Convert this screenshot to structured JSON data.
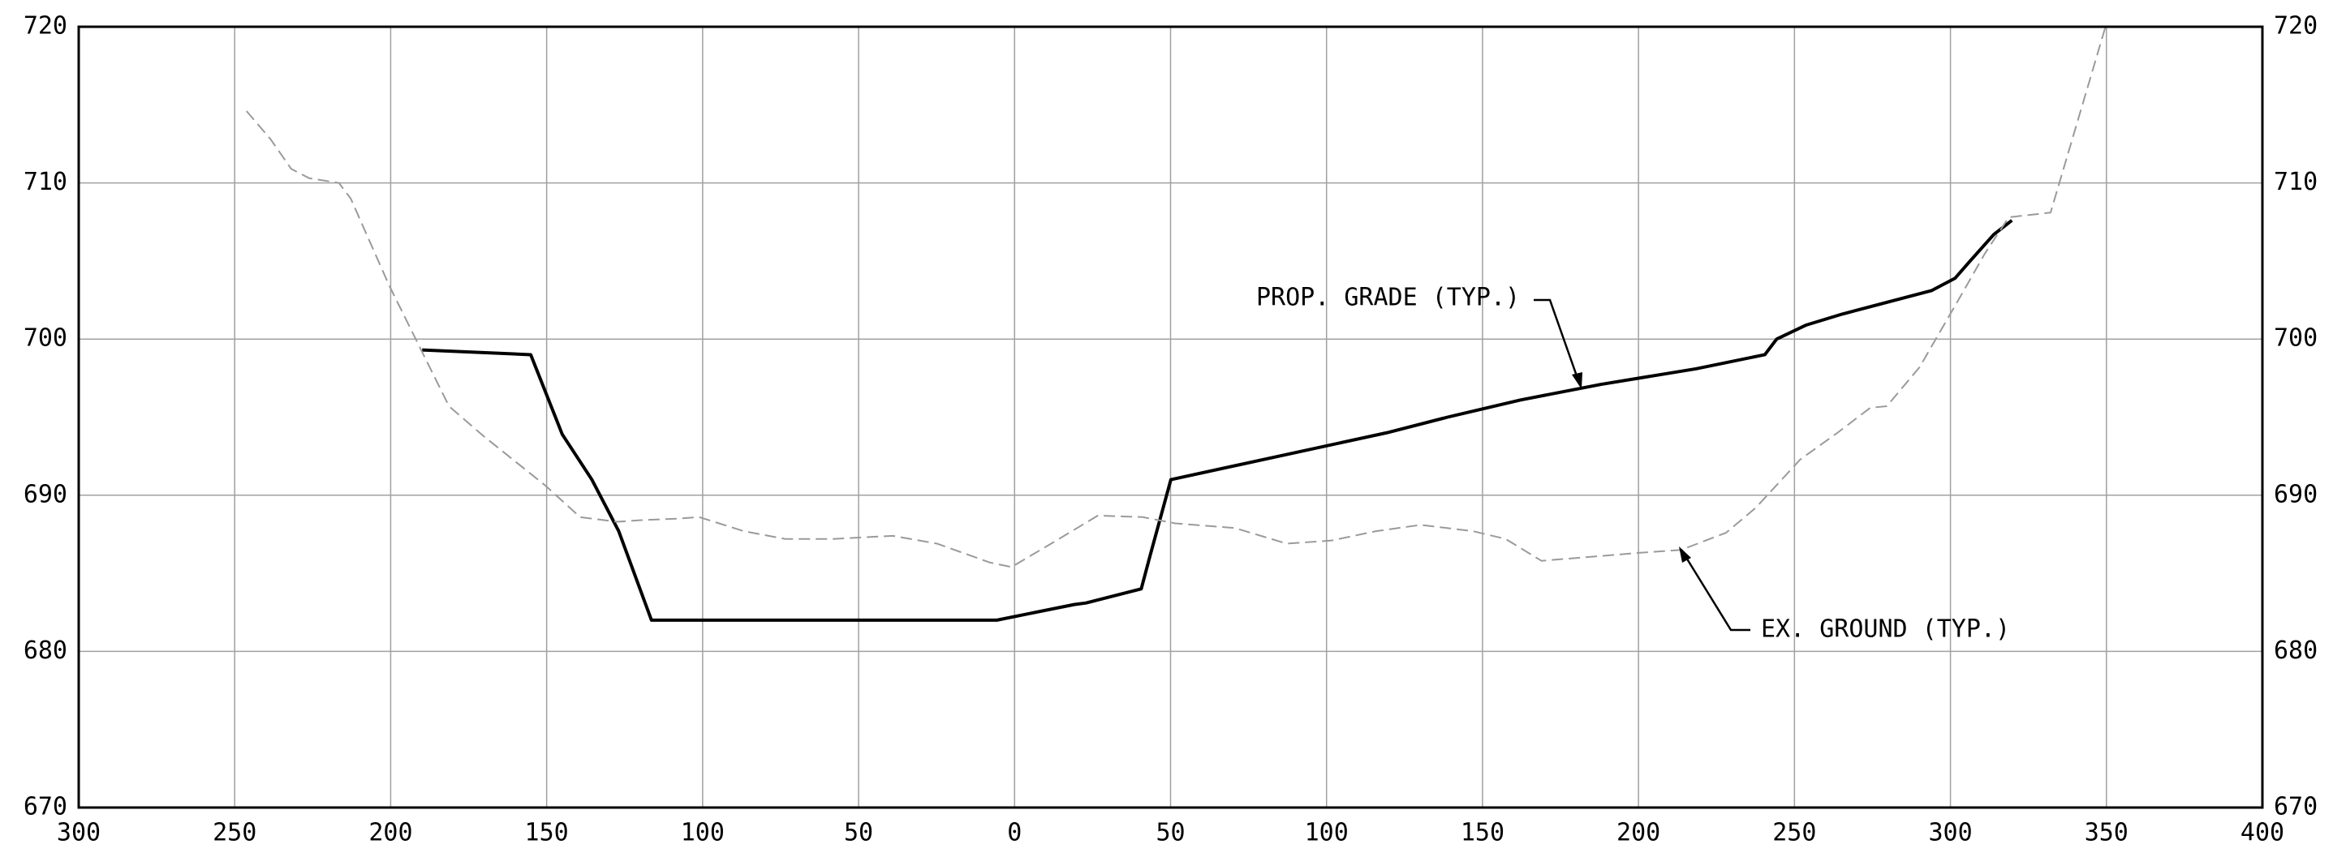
{
  "chart_data": {
    "type": "line",
    "xlim": [
      -300,
      400
    ],
    "xticks": [
      {
        "value": -300,
        "label": "300"
      },
      {
        "value": -250,
        "label": "250"
      },
      {
        "value": -200,
        "label": "200"
      },
      {
        "value": -150,
        "label": "150"
      },
      {
        "value": -100,
        "label": "100"
      },
      {
        "value": -50,
        "label": "50"
      },
      0,
      50,
      100,
      150,
      200,
      250,
      300,
      350,
      400
    ],
    "ylim": [
      670,
      720
    ],
    "yticks": [
      670,
      680,
      690,
      700,
      710,
      720
    ],
    "grid": true,
    "series": [
      {
        "name": "PROP. GRADE (TYP.)",
        "color": "#000000",
        "dash": false,
        "x": [
          -189.9,
          -155.1,
          -145.0,
          -135.5,
          -126.9,
          -116.4,
          -5.7,
          19.1,
          22.9,
          40.6,
          43.4,
          50.1,
          119.3,
          138.8,
          162.2,
          188.0,
          218.5,
          240.5,
          244.3,
          253.8,
          265.3,
          293.9,
          301.5,
          306.3,
          313.9,
          319.7
        ],
        "values": [
          699.3,
          699.0,
          693.9,
          691.0,
          687.7,
          682.0,
          682.0,
          683.0,
          683.1,
          684.0,
          686.1,
          691.0,
          694.0,
          695.0,
          696.1,
          697.1,
          698.1,
          699.0,
          700.0,
          700.9,
          701.6,
          703.1,
          703.9,
          705.0,
          706.7,
          707.6
        ]
      },
      {
        "name": "EX. GROUND (TYP.)",
        "color": "#9a9a9a",
        "dash": true,
        "x": [
          -246.2,
          -238.5,
          -231.9,
          -226.1,
          -216.6,
          -212.8,
          -200.4,
          -181.3,
          -170.3,
          -150.3,
          -139.3,
          -127.4,
          -120.2,
          -108.3,
          -101.1,
          -86.8,
          -73.5,
          -58.2,
          -39.1,
          -24.8,
          -8.1,
          -1.0,
          13.4,
          26.7,
          41.0,
          51.5,
          70.6,
          87.3,
          101.6,
          115.9,
          130.2,
          146.9,
          157.4,
          168.9,
          187.5,
          199.4,
          213.7,
          228.1,
          237.6,
          251.9,
          263.8,
          274.3,
          279.6,
          290.1,
          303.4,
          311.1,
          318.7,
          332.1,
          349.7
        ],
        "values": [
          714.6,
          712.8,
          710.9,
          710.3,
          710.0,
          709.0,
          703.4,
          695.7,
          693.8,
          690.6,
          688.6,
          688.3,
          688.4,
          688.5,
          688.6,
          687.7,
          687.2,
          687.2,
          687.4,
          686.9,
          685.7,
          685.4,
          687.1,
          688.7,
          688.6,
          688.2,
          687.9,
          686.9,
          687.1,
          687.7,
          688.1,
          687.7,
          687.2,
          685.8,
          686.1,
          686.3,
          686.5,
          687.6,
          689.2,
          692.3,
          694.0,
          695.6,
          695.7,
          698.2,
          702.8,
          705.5,
          707.8,
          708.1,
          720.0
        ]
      }
    ]
  }
}
